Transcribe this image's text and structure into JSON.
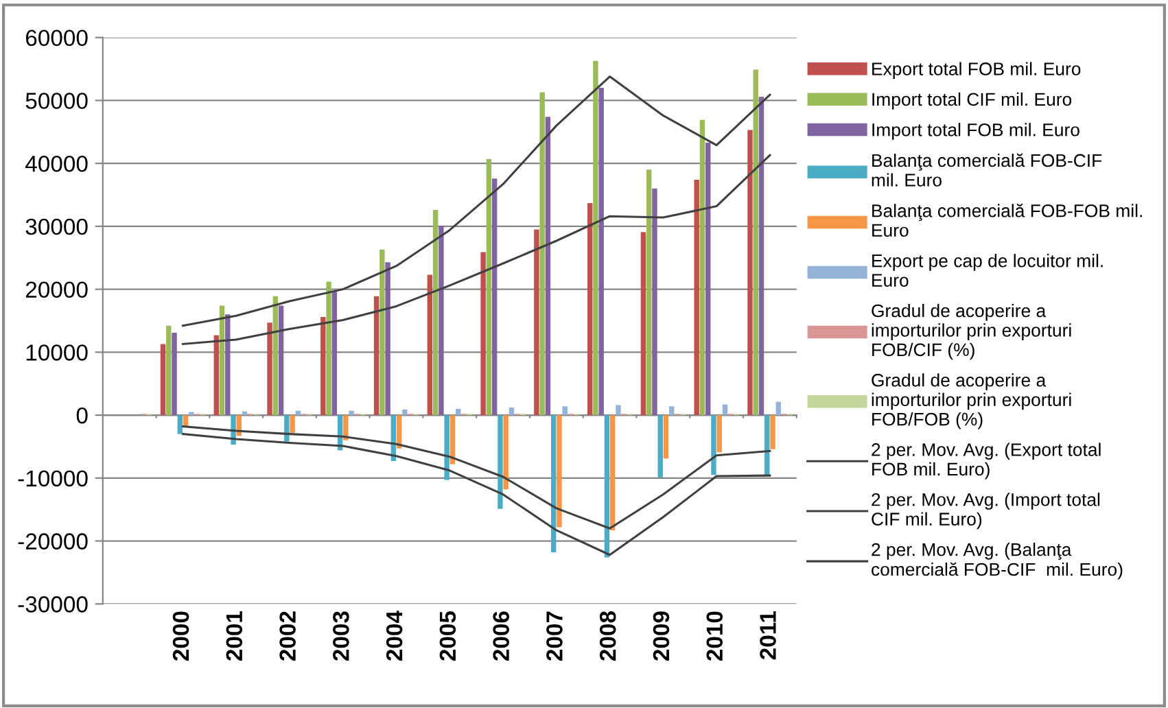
{
  "chart_data": {
    "type": "bar",
    "categories": [
      null,
      "2000",
      "2001",
      "2002",
      "2003",
      "2004",
      "2005",
      "2006",
      "2007",
      "2008",
      "2009",
      "2010",
      "2011"
    ],
    "ylim": [
      -30000,
      60000
    ],
    "yticks": [
      -30000,
      -20000,
      -10000,
      0,
      10000,
      20000,
      30000,
      40000,
      50000,
      60000
    ],
    "grid": "y",
    "legend": "right",
    "series": [
      {
        "name": "Export total FOB mil. Euro",
        "color": "#c0504d",
        "values": [
          null,
          11300,
          12700,
          14700,
          15600,
          18900,
          22300,
          25900,
          29500,
          33700,
          29100,
          37400,
          45300
        ]
      },
      {
        "name": "Import total CIF mil. Euro",
        "color": "#9bbb59",
        "values": [
          null,
          14200,
          17400,
          18900,
          21200,
          26300,
          32600,
          40700,
          51300,
          56300,
          39000,
          46900,
          54900
        ]
      },
      {
        "name": "Import total FOB mil. Euro",
        "color": "#8064a2",
        "values": [
          null,
          13100,
          16000,
          17400,
          19600,
          24300,
          30100,
          37600,
          47400,
          52000,
          36000,
          43300,
          50600
        ]
      },
      {
        "name": "Balanţa comercială FOB-CIF  mil. Euro",
        "color": "#4bacc6",
        "values": [
          null,
          -3000,
          -4700,
          -4200,
          -5600,
          -7300,
          -10300,
          -14900,
          -21800,
          -22600,
          -9900,
          -9500,
          -9700
        ]
      },
      {
        "name": "Balanţa comercială FOB-FOB mil. Euro",
        "color": "#f79646",
        "values": [
          null,
          -1800,
          -3300,
          -2800,
          -4000,
          -5300,
          -7800,
          -11800,
          -17800,
          -18300,
          -6900,
          -5900,
          -5400
        ]
      },
      {
        "name": "Export pe cap de locuitor mil. Euro",
        "color": "#95b3d7",
        "values": [
          null,
          500,
          600,
          700,
          700,
          900,
          1000,
          1200,
          1400,
          1600,
          1400,
          1700,
          2100
        ]
      },
      {
        "name": "Gradul de acoperire a importurilor prin exporturi FOB/CIF (%)",
        "color": "#d99694",
        "values": [
          200,
          200,
          200,
          200,
          200,
          200,
          200,
          200,
          200,
          200,
          200,
          200,
          200
        ]
      },
      {
        "name": "Gradul de acoperire a importurilor prin exporturi FOB/FOB (%)",
        "color": "#c3d69b",
        "values": [
          200,
          200,
          200,
          200,
          200,
          200,
          200,
          200,
          200,
          200,
          200,
          200,
          200
        ]
      },
      {
        "name": "2 per. Mov. Avg. (Export total FOB mil. Euro)",
        "type": "line",
        "color": "#404040",
        "values": [
          null,
          11300,
          12000,
          13700,
          15100,
          17300,
          20600,
          24100,
          27700,
          31600,
          31400,
          33200,
          41300
        ]
      },
      {
        "name": "2 per. Mov. Avg. (Import total CIF mil. Euro)",
        "type": "line",
        "color": "#404040",
        "values": [
          null,
          14200,
          15800,
          18100,
          20000,
          23700,
          29400,
          36700,
          46000,
          53800,
          47600,
          42900,
          50900
        ]
      },
      {
        "name": "2 per. Mov. Avg. (Balanţa comercială FOB-CIF  mil. Euro)",
        "type": "line",
        "color": "#404040",
        "values": [
          null,
          -3000,
          -3800,
          -4400,
          -4900,
          -6500,
          -8800,
          -12600,
          -18300,
          -22200,
          -16200,
          -9700,
          -9600
        ]
      },
      {
        "type": "line",
        "color": "#404040",
        "values": [
          null,
          -1800,
          -2500,
          -3000,
          -3400,
          -4600,
          -6600,
          -9800,
          -14800,
          -18000,
          -12600,
          -6400,
          -5700
        ]
      }
    ]
  }
}
